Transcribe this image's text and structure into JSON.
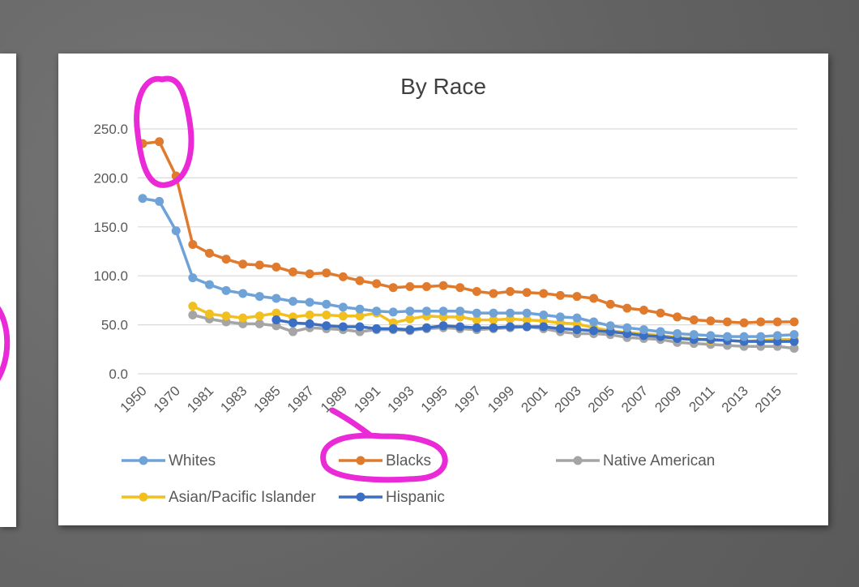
{
  "colors": {
    "Whites": "#6fa3d8",
    "Blacks": "#e07b2e",
    "Native American": "#a5a5a5",
    "Asian/Pacific Islander": "#f2c01e",
    "Hispanic": "#3a6fc4",
    "annotation": "#ea2ad7",
    "grid": "#d9d9d9",
    "axis_text": "#595959"
  },
  "chart_data": {
    "type": "line",
    "title": "By Race",
    "xlabel": "",
    "ylabel": "",
    "ylim": [
      0,
      250
    ],
    "yticks": [
      "0.0",
      "50.0",
      "100.0",
      "150.0",
      "200.0",
      "250.0"
    ],
    "grid": true,
    "legend_position": "bottom",
    "categories": [
      "1950",
      "1960",
      "1970",
      "1980",
      "1981",
      "1982",
      "1983",
      "1984",
      "1985",
      "1986",
      "1987",
      "1988",
      "1989",
      "1990",
      "1991",
      "1992",
      "1993",
      "1994",
      "1995",
      "1996",
      "1997",
      "1998",
      "1999",
      "2000",
      "2001",
      "2002",
      "2003",
      "2004",
      "2005",
      "2006",
      "2007",
      "2008",
      "2009",
      "2010",
      "2011",
      "2012",
      "2013",
      "2014",
      "2015",
      "2016"
    ],
    "xtick_labels": [
      "1950",
      "1970",
      "1981",
      "1983",
      "1985",
      "1987",
      "1989",
      "1991",
      "1993",
      "1995",
      "1997",
      "1999",
      "2001",
      "2003",
      "2005",
      "2007",
      "2009",
      "2011",
      "2013",
      "2015"
    ],
    "series": [
      {
        "name": "Whites",
        "values": [
          179,
          176,
          146,
          98,
          91,
          85,
          82,
          79,
          77,
          74,
          73,
          71,
          68,
          66,
          64,
          63,
          64,
          64,
          64,
          64,
          62,
          62,
          62,
          62,
          60,
          58,
          57,
          53,
          49,
          47,
          45,
          43,
          41,
          40,
          39,
          38,
          38,
          38,
          39,
          40
        ]
      },
      {
        "name": "Blacks",
        "values": [
          235,
          237,
          202,
          132,
          123,
          117,
          112,
          111,
          109,
          104,
          102,
          103,
          99,
          95,
          92,
          88,
          89,
          89,
          90,
          88,
          84,
          82,
          84,
          83,
          82,
          80,
          79,
          77,
          71,
          67,
          65,
          62,
          58,
          55,
          54,
          53,
          52,
          53,
          53,
          53
        ]
      },
      {
        "name": "Native American",
        "values": [
          null,
          null,
          null,
          60,
          56,
          53,
          51,
          51,
          49,
          43,
          47,
          46,
          45,
          43,
          45,
          45,
          44,
          46,
          47,
          46,
          45,
          46,
          47,
          48,
          46,
          43,
          41,
          41,
          40,
          37,
          36,
          35,
          32,
          31,
          30,
          29,
          28,
          28,
          28,
          26
        ]
      },
      {
        "name": "Asian/Pacific Islander",
        "values": [
          null,
          null,
          null,
          69,
          61,
          59,
          57,
          59,
          62,
          58,
          60,
          60,
          59,
          59,
          62,
          52,
          56,
          59,
          58,
          58,
          55,
          55,
          56,
          55,
          54,
          52,
          51,
          47,
          44,
          42,
          41,
          39,
          37,
          36,
          34,
          34,
          33,
          34,
          35,
          35
        ]
      },
      {
        "name": "Hispanic",
        "values": [
          null,
          null,
          null,
          null,
          null,
          null,
          null,
          null,
          55,
          52,
          51,
          49,
          48,
          48,
          46,
          46,
          45,
          47,
          49,
          48,
          47,
          47,
          48,
          48,
          48,
          46,
          45,
          44,
          43,
          41,
          39,
          38,
          36,
          35,
          35,
          34,
          33,
          33,
          33,
          33
        ]
      }
    ]
  }
}
